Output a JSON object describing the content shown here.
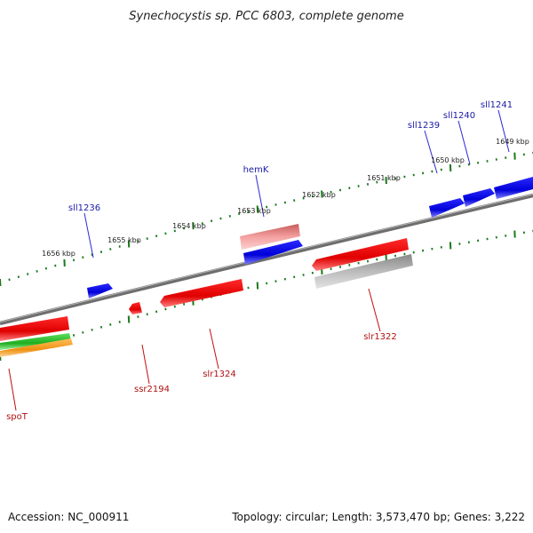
{
  "title": "Synechocystis sp. PCC 6803, complete genome",
  "footer": {
    "accession": "Accession: NC_000911",
    "summary": "Topology: circular; Length: 3,573,470 bp; Genes: 3,222"
  },
  "scale_labels": [
    "1649 kbp",
    "1650 kbp",
    "1651 kbp",
    "1652 kbp",
    "1653 kbp",
    "1654 kbp",
    "1655 kbp",
    "1656 kbp"
  ],
  "gene_labels": {
    "sll1241": "sll1241",
    "sll1240": "sll1240",
    "sll1239": "sll1239",
    "hemK": "hemK",
    "sll1236": "sll1236",
    "slr1322": "slr1322",
    "slr1324": "slr1324",
    "ssr2194": "ssr2194",
    "spoT": "spoT"
  },
  "colors": {
    "forward_gene": "#0a0ae6",
    "reverse_gene": "#e60a0a",
    "backbone": "#7a7a7a",
    "tick": "#1a7a1a",
    "pink_feature": "#e88a8a",
    "grey_feature": "#a8a8a8",
    "green_feature": "#22bb22",
    "orange_feature": "#f0a020"
  }
}
